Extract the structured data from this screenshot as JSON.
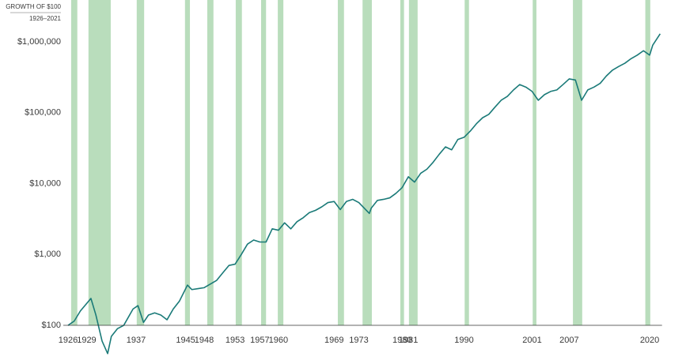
{
  "chart_data": {
    "type": "line",
    "title": "GROWTH OF $100",
    "subtitle": "1926–2021",
    "log_scale": true,
    "color": "#1a7a78",
    "shade_color": "#b9ddbc",
    "shaded_periods": [
      [
        1926.5,
        1927.5
      ],
      [
        1929.3,
        1932.9
      ],
      [
        1937.1,
        1938.3
      ],
      [
        1944.9,
        1945.7
      ],
      [
        1948.5,
        1949.5
      ],
      [
        1953.1,
        1954.1
      ],
      [
        1957.2,
        1958.0
      ],
      [
        1959.9,
        1960.8
      ],
      [
        1969.6,
        1970.6
      ],
      [
        1973.6,
        1975.1
      ],
      [
        1979.7,
        1980.3
      ],
      [
        1981.1,
        1982.5
      ],
      [
        1990.1,
        1990.8
      ],
      [
        2001.1,
        2001.7
      ],
      [
        2007.6,
        2009.1
      ],
      [
        2019.3,
        2020.1
      ]
    ],
    "x": [
      1926,
      1927,
      1928,
      1929.7,
      1930.5,
      1931.5,
      1932.4,
      1933,
      1934,
      1935,
      1936.5,
      1937.3,
      1938.2,
      1939,
      1940,
      1941,
      1942,
      1943,
      1944,
      1945.3,
      1946,
      1947,
      1948,
      1950,
      1951,
      1952,
      1953,
      1954,
      1955,
      1956,
      1957,
      1958,
      1959,
      1960,
      1961,
      1962,
      1963,
      1964,
      1965,
      1966,
      1967,
      1968,
      1969,
      1970,
      1971,
      1972,
      1973,
      1974.7,
      1975,
      1976,
      1977,
      1978,
      1979,
      1980,
      1981,
      1982,
      1983,
      1984,
      1985,
      1986,
      1987,
      1988,
      1989,
      1990,
      1991,
      1992,
      1993,
      1994,
      1995,
      1996,
      1997,
      1998,
      1999,
      2000,
      2001,
      2002,
      2003,
      2004,
      2005,
      2006,
      2007,
      2008,
      2009,
      2010,
      2011,
      2012,
      2013,
      2014,
      2015,
      2016,
      2017,
      2018,
      2019,
      2020,
      2020.5,
      2021.7
    ],
    "values": [
      100,
      115,
      160,
      240,
      140,
      60,
      40,
      70,
      90,
      100,
      170,
      190,
      110,
      140,
      150,
      140,
      120,
      170,
      220,
      370,
      320,
      330,
      340,
      430,
      550,
      700,
      730,
      1000,
      1400,
      1600,
      1500,
      1500,
      2300,
      2200,
      2800,
      2300,
      2900,
      3300,
      3900,
      4200,
      4700,
      5400,
      5600,
      4300,
      5600,
      6000,
      5400,
      3800,
      4500,
      5800,
      6000,
      6300,
      7300,
      8800,
      12500,
      10500,
      14000,
      16000,
      20000,
      26000,
      33000,
      30000,
      42000,
      45000,
      55000,
      70000,
      85000,
      95000,
      120000,
      150000,
      170000,
      210000,
      250000,
      230000,
      200000,
      150000,
      180000,
      200000,
      210000,
      250000,
      300000,
      290000,
      150000,
      210000,
      230000,
      260000,
      330000,
      400000,
      450000,
      500000,
      580000,
      650000,
      750000,
      650000,
      900000,
      1300000
    ],
    "xlim": [
      1926,
      2022
    ],
    "xticks": [
      1926,
      1929,
      1937,
      1945,
      1948,
      1953,
      1957,
      1960,
      1969,
      1973,
      1980,
      1981,
      1990,
      2001,
      2007,
      2020
    ],
    "ylim": [
      30,
      4000000
    ],
    "yticks": [
      {
        "value": 100,
        "label": "$100"
      },
      {
        "value": 1000,
        "label": "$1,000"
      },
      {
        "value": 10000,
        "label": "$10,000"
      },
      {
        "value": 100000,
        "label": "$100,000"
      },
      {
        "value": 1000000,
        "label": "$1,000,000"
      }
    ]
  }
}
